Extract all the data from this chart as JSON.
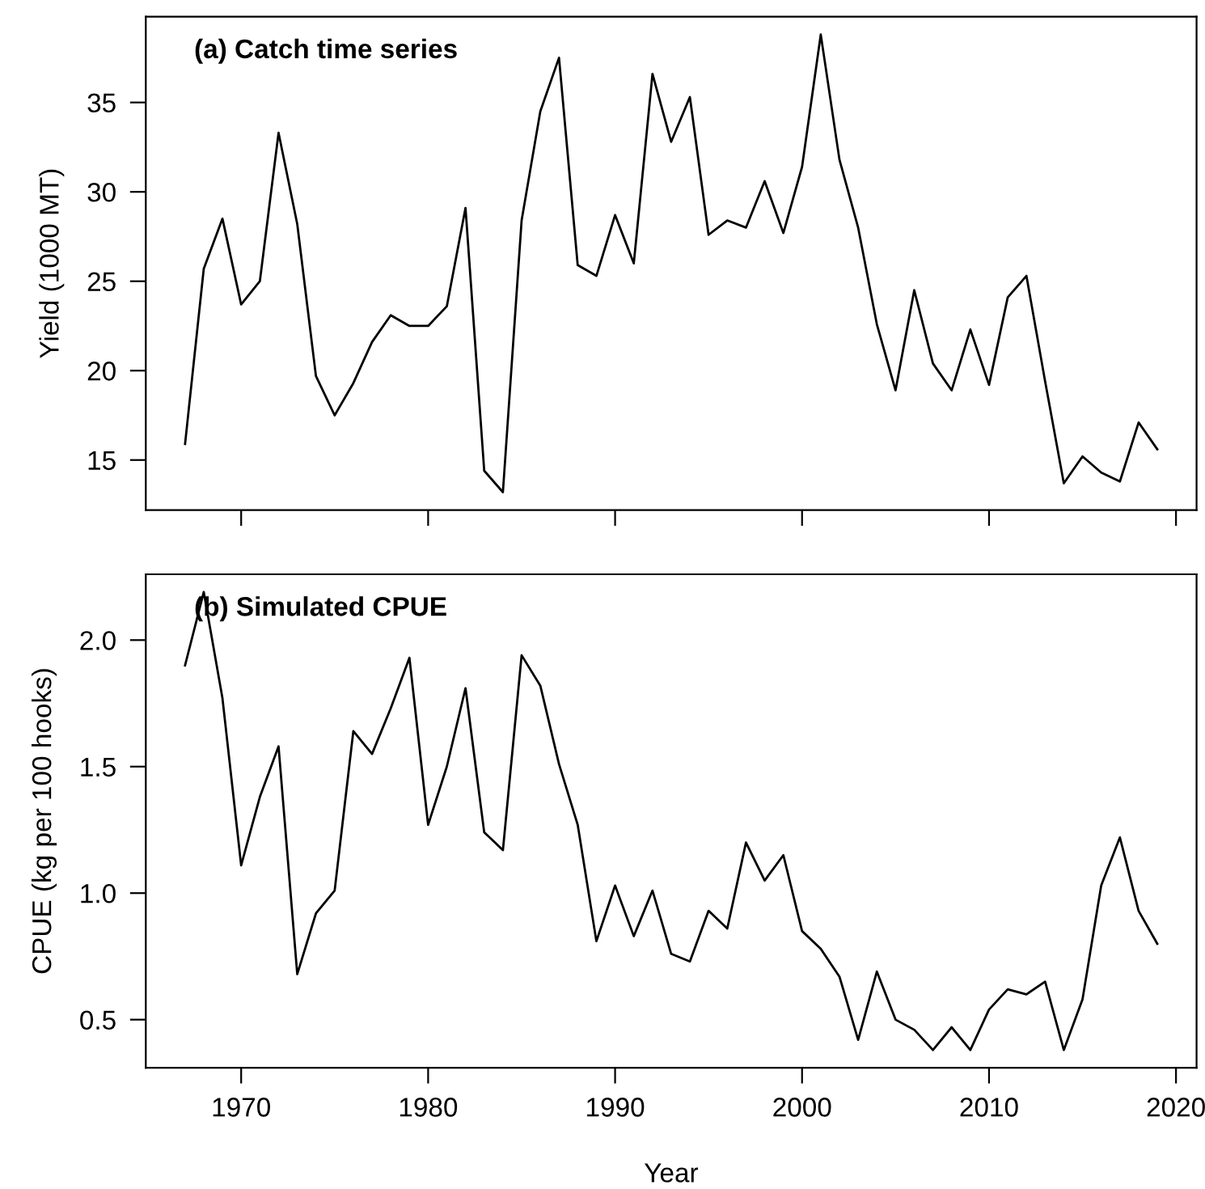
{
  "chart_data": [
    {
      "type": "line",
      "title": "(a) Catch time series",
      "ylabel": "Yield (1000 MT)",
      "x": [
        1967,
        1968,
        1969,
        1970,
        1971,
        1972,
        1973,
        1974,
        1975,
        1976,
        1977,
        1978,
        1979,
        1980,
        1981,
        1982,
        1983,
        1984,
        1985,
        1986,
        1987,
        1988,
        1989,
        1990,
        1991,
        1992,
        1993,
        1994,
        1995,
        1996,
        1997,
        1998,
        1999,
        2000,
        2001,
        2002,
        2003,
        2004,
        2005,
        2006,
        2007,
        2008,
        2009,
        2010,
        2011,
        2012,
        2013,
        2014,
        2015,
        2016,
        2017,
        2018,
        2019
      ],
      "series": [
        {
          "color": "#000000",
          "values": [
            15.9,
            25.7,
            28.5,
            23.7,
            25.0,
            33.3,
            28.2,
            19.7,
            17.5,
            19.3,
            21.6,
            23.1,
            22.5,
            22.5,
            23.6,
            29.1,
            14.4,
            13.2,
            28.4,
            34.5,
            37.5,
            25.9,
            25.3,
            28.7,
            26.0,
            36.6,
            32.8,
            35.3,
            27.6,
            28.4,
            28.0,
            30.6,
            27.7,
            31.4,
            38.8,
            31.8,
            28.0,
            22.6,
            18.9,
            24.5,
            20.4,
            18.9,
            22.3,
            19.2,
            24.1,
            25.3,
            19.4,
            13.7,
            15.2,
            14.3,
            13.8,
            17.1,
            15.6
          ]
        }
      ],
      "xlim": [
        1964.9,
        2021.1
      ],
      "xticks": [
        1970,
        1980,
        1990,
        2000,
        2010,
        2020
      ],
      "ylim": [
        12.2,
        39.8
      ],
      "yticks": [
        15,
        20,
        25,
        30,
        35
      ],
      "tick_labels": "y",
      "line_style": "solid",
      "marker": "none"
    },
    {
      "type": "line",
      "title": "(b) Simulated CPUE",
      "xlabel": "Year",
      "ylabel": "CPUE (kg per 100 hooks)",
      "x": [
        1967,
        1968,
        1969,
        1970,
        1971,
        1972,
        1973,
        1974,
        1975,
        1976,
        1977,
        1978,
        1979,
        1980,
        1981,
        1982,
        1983,
        1984,
        1985,
        1986,
        1987,
        1988,
        1989,
        1990,
        1991,
        1992,
        1993,
        1994,
        1995,
        1996,
        1997,
        1998,
        1999,
        2000,
        2001,
        2002,
        2003,
        2004,
        2005,
        2006,
        2007,
        2008,
        2009,
        2010,
        2011,
        2012,
        2013,
        2014,
        2015,
        2016,
        2017,
        2018,
        2019
      ],
      "series": [
        {
          "color": "#000000",
          "values": [
            1.9,
            2.19,
            1.77,
            1.11,
            1.38,
            1.58,
            0.68,
            0.92,
            1.01,
            1.64,
            1.55,
            1.73,
            1.93,
            1.27,
            1.5,
            1.81,
            1.24,
            1.17,
            1.94,
            1.82,
            1.51,
            1.27,
            0.81,
            1.03,
            0.83,
            1.01,
            0.76,
            0.73,
            0.93,
            0.86,
            1.2,
            1.05,
            1.15,
            0.85,
            0.78,
            0.67,
            0.42,
            0.69,
            0.5,
            0.46,
            0.38,
            0.47,
            0.38,
            0.54,
            0.62,
            0.6,
            0.65,
            0.38,
            0.58,
            1.03,
            1.22,
            0.93,
            0.8
          ]
        }
      ],
      "xlim": [
        1964.9,
        2021.1
      ],
      "xticks": [
        1970,
        1980,
        1990,
        2000,
        2010,
        2020
      ],
      "ylim": [
        0.31,
        2.26
      ],
      "yticks": [
        {
          "value": 0.5,
          "label": "0.5"
        },
        {
          "value": 1.0,
          "label": "1.0"
        },
        {
          "value": 1.5,
          "label": "1.5"
        },
        {
          "value": 2.0,
          "label": "2.0"
        }
      ],
      "line_style": "solid",
      "marker": "none"
    }
  ]
}
